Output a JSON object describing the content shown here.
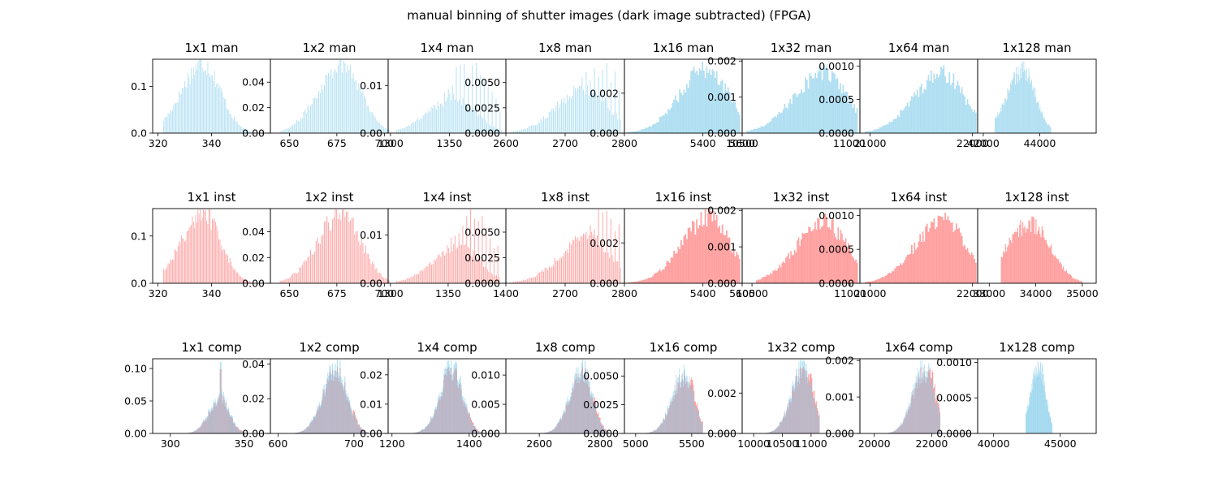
{
  "figure": {
    "title": "manual binning of shutter images (dark image subtracted) (FPGA)"
  },
  "colors": {
    "man": "#87ceeb",
    "inst": "#ff6f6f",
    "comp_overlap": "#b5b7c9"
  },
  "chart_data": [
    {
      "type": "bar",
      "row": "man",
      "title": "1x1 man",
      "xlim": [
        318,
        362
      ],
      "ylim": [
        0,
        0.158
      ],
      "xticks": [
        320,
        340
      ],
      "yticks": [
        "0.0",
        "0.1"
      ],
      "mean": 337,
      "sd": 6.5,
      "peak": 0.152,
      "discrete_step": 1,
      "extent": [
        322,
        355
      ],
      "series": [
        {
          "name": "man",
          "color": "#87ceeb"
        }
      ]
    },
    {
      "type": "bar",
      "row": "man",
      "title": "1x2 man",
      "xlim": [
        640,
        702
      ],
      "ylim": [
        0,
        0.058
      ],
      "xticks": [
        650,
        675,
        700
      ],
      "yticks": [
        "0.00",
        "0.02",
        "0.04"
      ],
      "mean": 678,
      "sd": 10,
      "peak": 0.056,
      "discrete_step": 2,
      "extent": [
        645,
        703
      ],
      "series": [
        {
          "name": "man",
          "color": "#87ceeb"
        }
      ]
    },
    {
      "type": "bar",
      "row": "man",
      "title": "1x4 man",
      "xlim": [
        1298,
        1398
      ],
      "ylim": [
        0,
        0.0155
      ],
      "xticks": [
        1300,
        1350,
        1400
      ],
      "yticks": [
        "0.00",
        "0.01"
      ],
      "mean": 1355,
      "sd": 18,
      "peak": 0.0075,
      "discrete_step": 4,
      "spikes": true,
      "spike_peak": 0.0145,
      "extent": [
        1305,
        1395
      ],
      "series": [
        {
          "name": "man",
          "color": "#87ceeb"
        }
      ]
    },
    {
      "type": "bar",
      "row": "man",
      "title": "1x8 man",
      "xlim": [
        2600,
        2800
      ],
      "ylim": [
        0,
        0.0073
      ],
      "xticks": [
        2600,
        2700,
        2800
      ],
      "yticks": [
        "0.0000",
        "0.0025",
        "0.0050"
      ],
      "mean": 2735,
      "sd": 38,
      "peak": 0.0045,
      "discrete_step": 8,
      "spikes": true,
      "spike_peak": 0.0068,
      "extent": [
        2610,
        2795
      ],
      "series": [
        {
          "name": "man",
          "color": "#87ceeb"
        }
      ]
    },
    {
      "type": "bar",
      "row": "man",
      "title": "1x16 man",
      "xlim": [
        5000,
        5600
      ],
      "ylim": [
        0,
        0.0037
      ],
      "xticks": [
        5400,
        5600
      ],
      "yticks": [
        "0.000",
        "0.002"
      ],
      "mean": 5420,
      "sd": 110,
      "peak": 0.0033,
      "extent": [
        5010,
        5590
      ],
      "series": [
        {
          "name": "man",
          "color": "#87ceeb"
        }
      ]
    },
    {
      "type": "bar",
      "row": "man",
      "title": "1x32 man",
      "xlim": [
        10500,
        11050
      ],
      "ylim": [
        0,
        0.00205
      ],
      "xticks": [
        10500,
        11000
      ],
      "yticks": [
        "0.000",
        "0.001",
        "0.002"
      ],
      "mean": 10880,
      "sd": 110,
      "peak": 0.0017,
      "extent": [
        10520,
        11040
      ],
      "series": [
        {
          "name": "man",
          "color": "#87ceeb"
        }
      ]
    },
    {
      "type": "bar",
      "row": "man",
      "title": "1x64 man",
      "xlim": [
        20900,
        22050
      ],
      "ylim": [
        0,
        0.0011
      ],
      "xticks": [
        21000,
        22000
      ],
      "yticks": [
        "0.0000",
        "0.0005",
        "0.0010"
      ],
      "mean": 21700,
      "sd": 220,
      "peak": 0.0009,
      "extent": [
        20950,
        22040
      ],
      "series": [
        {
          "name": "man",
          "color": "#87ceeb"
        }
      ]
    },
    {
      "type": "bar",
      "row": "man",
      "title": "1x128 man",
      "xlim": [
        41800,
        46000
      ],
      "ylim": [
        0,
        0.0011
      ],
      "xticks": [
        42000,
        44000
      ],
      "yticks": [],
      "mean": 43400,
      "sd": 450,
      "peak": 0.00095,
      "extent": [
        42400,
        44400
      ],
      "series": [
        {
          "name": "man",
          "color": "#87ceeb"
        }
      ]
    },
    {
      "type": "bar",
      "row": "inst",
      "title": "1x1 inst",
      "xlim": [
        318,
        362
      ],
      "ylim": [
        0,
        0.158
      ],
      "xticks": [
        320,
        340
      ],
      "yticks": [
        "0.0",
        "0.1"
      ],
      "mean": 337,
      "sd": 6.5,
      "peak": 0.152,
      "discrete_step": 1,
      "extent": [
        322,
        355
      ],
      "series": [
        {
          "name": "inst",
          "color": "#ff6f6f"
        }
      ]
    },
    {
      "type": "bar",
      "row": "inst",
      "title": "1x2 inst",
      "xlim": [
        640,
        702
      ],
      "ylim": [
        0,
        0.058
      ],
      "xticks": [
        650,
        675,
        700
      ],
      "yticks": [
        "0.00",
        "0.02",
        "0.04"
      ],
      "mean": 678,
      "sd": 10,
      "peak": 0.056,
      "discrete_step": 2,
      "extent": [
        645,
        703
      ],
      "series": [
        {
          "name": "inst",
          "color": "#ff6f6f"
        }
      ]
    },
    {
      "type": "bar",
      "row": "inst",
      "title": "1x4 inst",
      "xlim": [
        1298,
        1400
      ],
      "ylim": [
        0,
        0.0155
      ],
      "xticks": [
        1300,
        1350,
        1400
      ],
      "yticks": [
        "0.00",
        "0.01"
      ],
      "mean": 1360,
      "sd": 18,
      "peak": 0.0075,
      "discrete_step": 4,
      "spikes": true,
      "spike_peak": 0.0145,
      "extent": [
        1305,
        1395
      ],
      "series": [
        {
          "name": "inst",
          "color": "#ff6f6f"
        }
      ]
    },
    {
      "type": "bar",
      "row": "inst",
      "title": "1x8 inst",
      "xlim": [
        2600,
        2800
      ],
      "ylim": [
        0,
        0.0073
      ],
      "xticks": [
        2700,
        2800
      ],
      "yticks": [
        "0.0000",
        "0.0025",
        "0.0050"
      ],
      "mean": 2740,
      "sd": 38,
      "peak": 0.0045,
      "discrete_step": 8,
      "spikes": true,
      "spike_peak": 0.0069,
      "extent": [
        2610,
        2795
      ],
      "series": [
        {
          "name": "inst",
          "color": "#ff6f6f"
        }
      ]
    },
    {
      "type": "bar",
      "row": "inst",
      "title": "1x16 inst",
      "xlim": [
        5000,
        5600
      ],
      "ylim": [
        0,
        0.0037
      ],
      "xticks": [
        5400,
        5600
      ],
      "yticks": [
        "0.000",
        "0.002"
      ],
      "mean": 5430,
      "sd": 110,
      "peak": 0.0033,
      "extent": [
        5010,
        5590
      ],
      "series": [
        {
          "name": "inst",
          "color": "#ff6f6f"
        }
      ]
    },
    {
      "type": "bar",
      "row": "inst",
      "title": "1x32 inst",
      "xlim": [
        10450,
        11050
      ],
      "ylim": [
        0,
        0.00205
      ],
      "xticks": [
        10500,
        11000
      ],
      "yticks": [
        "0.000",
        "0.001",
        "0.002"
      ],
      "mean": 10870,
      "sd": 115,
      "peak": 0.0017,
      "extent": [
        10520,
        11040
      ],
      "series": [
        {
          "name": "inst",
          "color": "#ff6f6f"
        }
      ]
    },
    {
      "type": "bar",
      "row": "inst",
      "title": "1x64 inst",
      "xlim": [
        20900,
        22050
      ],
      "ylim": [
        0,
        0.0011
      ],
      "xticks": [
        21000,
        22000
      ],
      "yticks": [
        "0.0000",
        "0.0005",
        "0.0010"
      ],
      "mean": 21720,
      "sd": 220,
      "peak": 0.00095,
      "extent": [
        20950,
        22040
      ],
      "series": [
        {
          "name": "inst",
          "color": "#ff6f6f"
        }
      ]
    },
    {
      "type": "bar",
      "row": "inst",
      "title": "1x128 inst",
      "xlim": [
        32750,
        35300
      ],
      "ylim": [
        0,
        0.0011
      ],
      "xticks": [
        33000,
        34000,
        35000
      ],
      "yticks": [],
      "mean": 33900,
      "sd": 420,
      "peak": 0.0009,
      "extent": [
        33250,
        35000
      ],
      "series": [
        {
          "name": "inst",
          "color": "#ff6f6f"
        }
      ]
    },
    {
      "type": "bar",
      "row": "comp",
      "title": "1x1 comp",
      "xlim": [
        288,
        368
      ],
      "ylim": [
        0,
        0.115
      ],
      "xticks": [
        300,
        350
      ],
      "yticks": [
        "0.00",
        "0.05",
        "0.10"
      ],
      "mean": 334,
      "sd": 6,
      "peak": 0.06,
      "spike_at": 334,
      "spike_peak": 0.11,
      "extent": [
        310,
        355
      ],
      "series": [
        {
          "name": "man",
          "color": "#87ceeb"
        },
        {
          "name": "inst",
          "color": "#ff6f6f"
        }
      ]
    },
    {
      "type": "bar",
      "row": "comp",
      "title": "1x2 comp",
      "xlim": [
        590,
        745
      ],
      "ylim": [
        0,
        0.043
      ],
      "xticks": [
        600,
        700
      ],
      "yticks": [
        "0.00",
        "0.02",
        "0.04"
      ],
      "mean": 677,
      "sd": 14,
      "peak": 0.041,
      "extent": [
        620,
        720
      ],
      "series": [
        {
          "name": "man",
          "color": "#87ceeb"
        },
        {
          "name": "inst",
          "color": "#ff6f6f"
        }
      ]
    },
    {
      "type": "bar",
      "row": "comp",
      "title": "1x4 comp",
      "xlim": [
        1190,
        1495
      ],
      "ylim": [
        0,
        0.0255
      ],
      "xticks": [
        1200,
        1400
      ],
      "yticks": [
        "0.00",
        "0.01",
        "0.02"
      ],
      "mean": 1357,
      "sd": 26,
      "peak": 0.024,
      "extent": [
        1250,
        1440
      ],
      "series": [
        {
          "name": "man",
          "color": "#87ceeb"
        },
        {
          "name": "inst",
          "color": "#ff6f6f"
        }
      ]
    },
    {
      "type": "bar",
      "row": "comp",
      "title": "1x8 comp",
      "xlim": [
        2490,
        2880
      ],
      "ylim": [
        0,
        0.0128
      ],
      "xticks": [
        2600,
        2800
      ],
      "yticks": [
        "0.000",
        "0.005",
        "0.010"
      ],
      "mean": 2740,
      "sd": 32,
      "peak": 0.0118,
      "extent": [
        2600,
        2830
      ],
      "series": [
        {
          "name": "man",
          "color": "#87ceeb"
        },
        {
          "name": "inst",
          "color": "#ff6f6f"
        }
      ]
    },
    {
      "type": "bar",
      "row": "comp",
      "title": "1x16 comp",
      "xlim": [
        4900,
        5950
      ],
      "ylim": [
        0,
        0.0065
      ],
      "xticks": [
        5000,
        5500
      ],
      "yticks": [
        "0.0000",
        "0.0025",
        "0.0050"
      ],
      "mean": 5430,
      "sd": 85,
      "peak": 0.0055,
      "extent": [
        5050,
        5600
      ],
      "series": [
        {
          "name": "man",
          "color": "#87ceeb"
        },
        {
          "name": "inst",
          "color": "#ff6f6f"
        }
      ]
    },
    {
      "type": "bar",
      "row": "comp",
      "title": "1x32 comp",
      "xlim": [
        9800,
        11850
      ],
      "ylim": [
        0,
        0.0037
      ],
      "xticks": [
        10000,
        10500,
        11000
      ],
      "yticks": [
        "0.000",
        "0.002"
      ],
      "mean": 10860,
      "sd": 165,
      "peak": 0.0034,
      "extent": [
        10200,
        11150
      ],
      "series": [
        {
          "name": "man",
          "color": "#87ceeb"
        },
        {
          "name": "inst",
          "color": "#ff6f6f"
        }
      ]
    },
    {
      "type": "bar",
      "row": "comp",
      "title": "1x64 comp",
      "xlim": [
        19500,
        23600
      ],
      "ylim": [
        0,
        0.00205
      ],
      "xticks": [
        20000,
        22000
      ],
      "yticks": [
        "0.000",
        "0.001",
        "0.002"
      ],
      "mean": 21750,
      "sd": 330,
      "peak": 0.0019,
      "extent": [
        20500,
        22300
      ],
      "series": [
        {
          "name": "man",
          "color": "#87ceeb"
        },
        {
          "name": "inst",
          "color": "#ff6f6f"
        }
      ]
    },
    {
      "type": "bar",
      "row": "comp",
      "title": "1x128 comp",
      "xlim": [
        38800,
        47700
      ],
      "ylim": [
        0,
        0.00105
      ],
      "xticks": [
        40000,
        45000
      ],
      "yticks": [
        "0.0000",
        "0.0005",
        "0.0010"
      ],
      "mean": 43400,
      "sd": 500,
      "peak": 0.00097,
      "extent": [
        42400,
        44400
      ],
      "series": [
        {
          "name": "man",
          "color": "#87ceeb"
        }
      ]
    }
  ]
}
